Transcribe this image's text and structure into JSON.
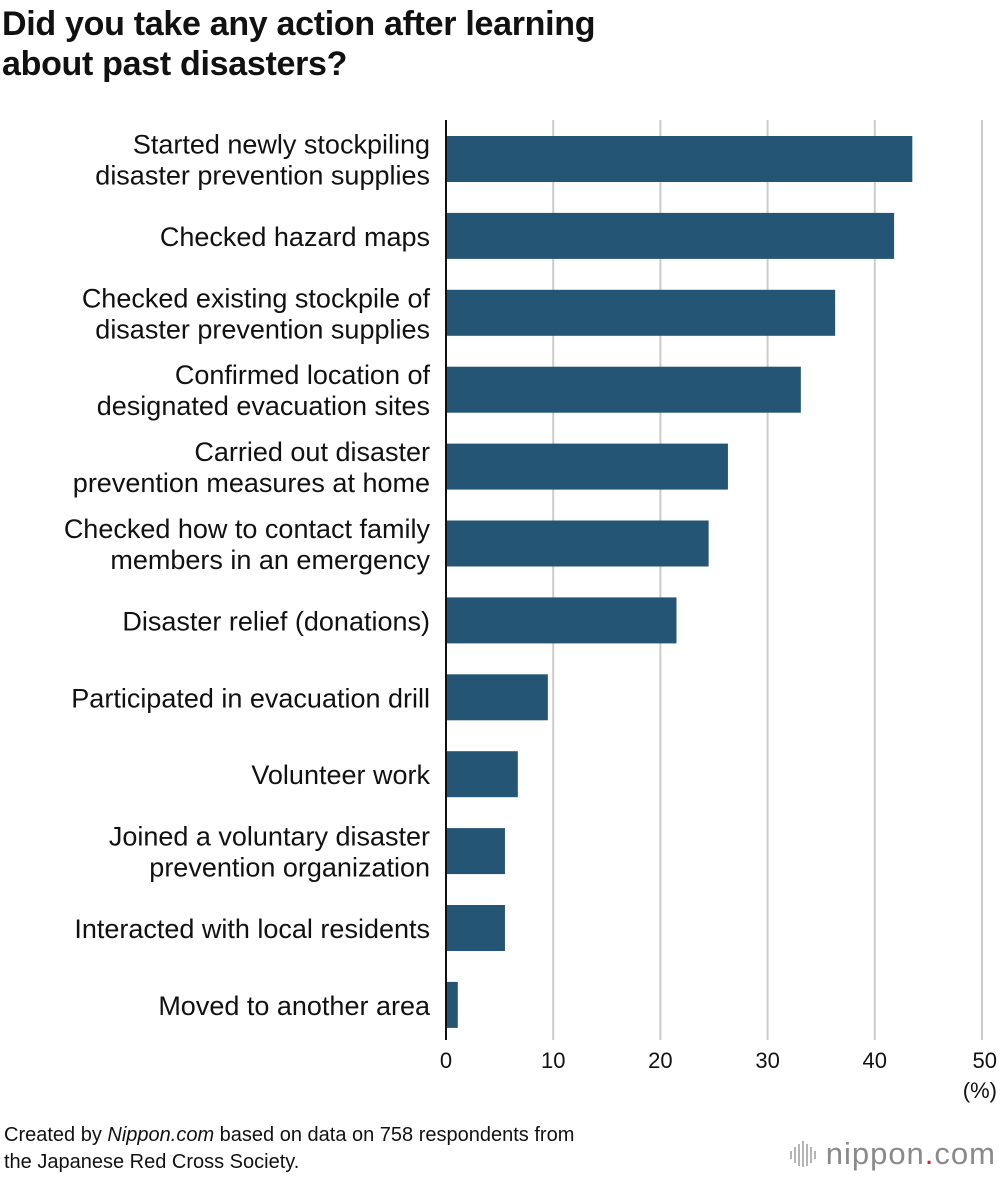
{
  "title": {
    "line1": "Did you take any action after learning",
    "line2": "about past disasters?"
  },
  "footer": {
    "prefix": "Created by ",
    "source_name": "Nippon.com",
    "suffix": " based on data on 758 respondents from",
    "line2": "the Japanese Red Cross Society."
  },
  "logo": {
    "part1": "nippon",
    "dot": ".",
    "part2": "com"
  },
  "colors": {
    "bar": "#255574",
    "grid": "#cccccc",
    "axis": "#111111",
    "logo_dot": "#d2232a"
  },
  "chart_data": {
    "type": "bar",
    "orientation": "horizontal",
    "categories": [
      [
        "Started newly stockpiling",
        "disaster prevention supplies"
      ],
      [
        "Checked hazard maps"
      ],
      [
        "Checked existing stockpile of",
        "disaster prevention supplies"
      ],
      [
        "Confirmed location of",
        "designated evacuation sites"
      ],
      [
        "Carried out disaster",
        "prevention measures at home"
      ],
      [
        "Checked how to contact family",
        "members in an emergency"
      ],
      [
        "Disaster relief (donations)"
      ],
      [
        "Participated in evacuation drill"
      ],
      [
        "Volunteer work"
      ],
      [
        "Joined a voluntary disaster",
        "prevention organization"
      ],
      [
        "Interacted with local residents"
      ],
      [
        "Moved to another area"
      ]
    ],
    "values": [
      43.5,
      41.8,
      36.3,
      33.1,
      26.3,
      24.5,
      21.5,
      9.5,
      6.7,
      5.5,
      5.5,
      1.1
    ],
    "xlim": [
      0,
      50
    ],
    "xticks": [
      0,
      10,
      20,
      30,
      40,
      50
    ],
    "unit_label": "(%)",
    "grid": true
  }
}
